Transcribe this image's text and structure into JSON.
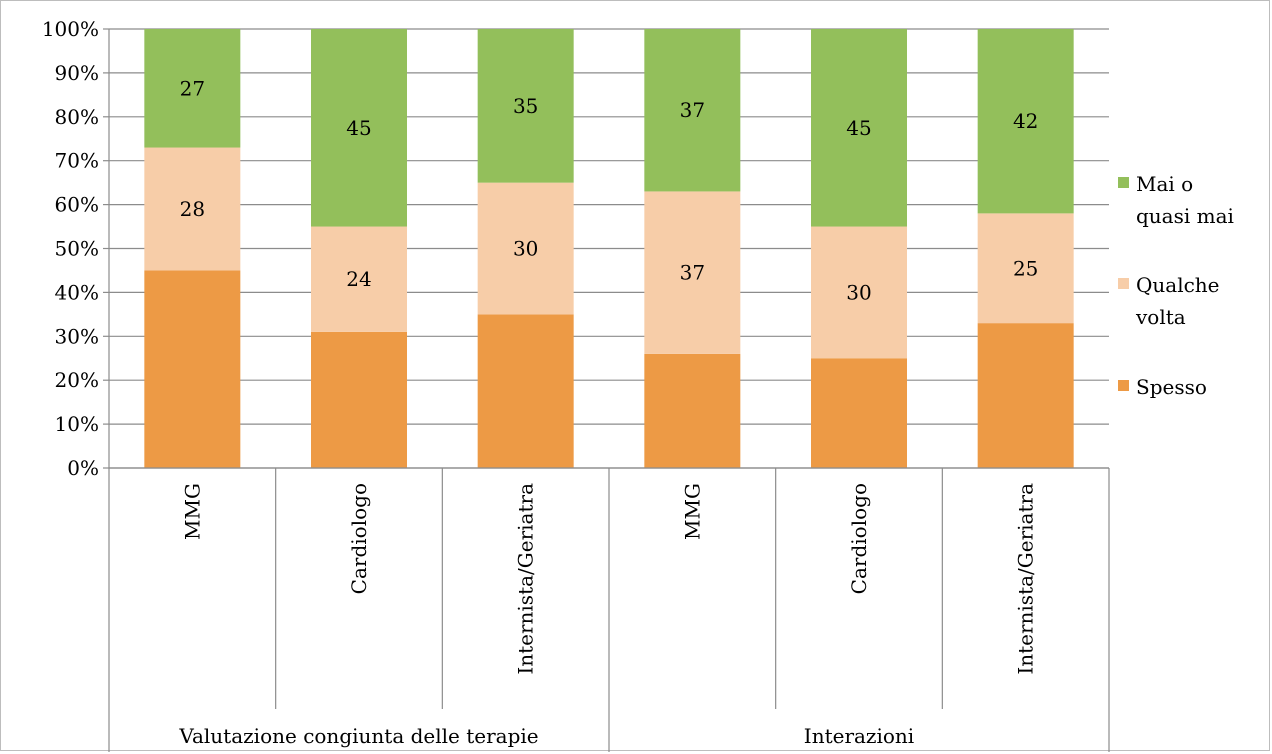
{
  "chart_data": {
    "type": "bar",
    "stacked": "percent",
    "groups": [
      {
        "label": "Valutazione congiunta delle terapie",
        "categories": [
          "MMG",
          "Cardiologo",
          "Internista/Geriatra"
        ]
      },
      {
        "label": "Interazioni",
        "categories": [
          "MMG",
          "Cardiologo",
          "Internista/Geriatra"
        ]
      }
    ],
    "categories": [
      "MMG",
      "Cardiologo",
      "Internista/Geriatra",
      "MMG",
      "Cardiologo",
      "Internista/Geriatra"
    ],
    "series": [
      {
        "name": "Spesso",
        "color": "#ed9a45",
        "values": [
          45,
          31,
          35,
          26,
          25,
          33
        ],
        "show_labels": false
      },
      {
        "name": "Qualche volta",
        "color": "#f7cda8",
        "values": [
          28,
          24,
          30,
          37,
          30,
          25
        ],
        "show_labels": true
      },
      {
        "name": "Mai o quasi mai",
        "color": "#93bf5b",
        "values": [
          27,
          45,
          35,
          37,
          45,
          42
        ],
        "show_labels": true
      }
    ],
    "legend_entries": [
      {
        "lines": [
          "Mai o",
          "quasi mai"
        ],
        "color": "#93bf5b"
      },
      {
        "lines": [
          "Qualche",
          "volta"
        ],
        "color": "#f7cda8"
      },
      {
        "lines": [
          "Spesso"
        ],
        "color": "#ed9a45"
      }
    ],
    "ylim": [
      0,
      100
    ],
    "yticks": [
      "0%",
      "10%",
      "20%",
      "30%",
      "40%",
      "50%",
      "60%",
      "70%",
      "80%",
      "90%",
      "100%"
    ],
    "grid": true,
    "legend_position": "right"
  }
}
